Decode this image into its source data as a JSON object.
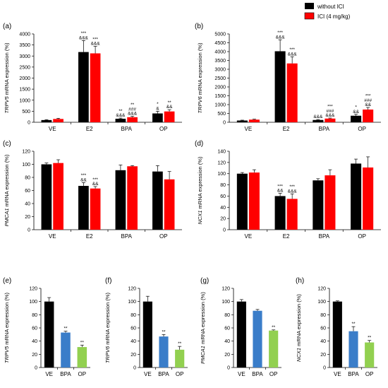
{
  "legend": {
    "items": [
      {
        "label": "without ICI",
        "color": "#000000"
      },
      {
        "label": "ICI (4 mg/kg)",
        "color": "#ff0000"
      }
    ]
  },
  "chart_data": [
    {
      "id": "a",
      "panel_label": "(a)",
      "type": "bar",
      "ylabel_gene": "TRPV5",
      "ylabel_rest": " mRNA expression (%)",
      "ylim": [
        0,
        4000
      ],
      "yticks": [
        0,
        500,
        1000,
        1500,
        2000,
        2500,
        3000,
        3500,
        4000
      ],
      "categories": [
        "VE",
        "E2",
        "BPA",
        "OP"
      ],
      "series": [
        {
          "key": "without",
          "color": "#000000",
          "values": [
            100,
            3180,
            160,
            400
          ],
          "errors": [
            20,
            520,
            30,
            100
          ]
        },
        {
          "key": "ici",
          "color": "#ff0000",
          "values": [
            150,
            3120,
            230,
            490
          ],
          "errors": [
            30,
            320,
            40,
            80
          ]
        }
      ],
      "annotations": [
        {
          "cat": 1,
          "series": 0,
          "lines": [
            "***",
            "&&&"
          ]
        },
        {
          "cat": 1,
          "series": 1,
          "lines": [
            "***",
            "&&&"
          ]
        },
        {
          "cat": 2,
          "series": 0,
          "lines": [
            "**",
            "&&&"
          ]
        },
        {
          "cat": 2,
          "series": 1,
          "lines": [
            "**",
            "###",
            "&&&"
          ]
        },
        {
          "cat": 3,
          "series": 0,
          "lines": [
            "*",
            "&"
          ]
        },
        {
          "cat": 3,
          "series": 1,
          "lines": [
            "**",
            "&&"
          ]
        }
      ]
    },
    {
      "id": "b",
      "panel_label": "(b)",
      "type": "bar",
      "ylabel_gene": "TRPV6",
      "ylabel_rest": " mRNA expression (%)",
      "ylim": [
        0,
        5000
      ],
      "yticks": [
        0,
        500,
        1000,
        1500,
        2000,
        2500,
        3000,
        3500,
        4000,
        4500,
        5000
      ],
      "categories": [
        "VE",
        "E2",
        "BPA",
        "OP"
      ],
      "series": [
        {
          "key": "without",
          "color": "#000000",
          "values": [
            100,
            4020,
            130,
            370
          ],
          "errors": [
            20,
            650,
            25,
            80
          ]
        },
        {
          "key": "ici",
          "color": "#ff0000",
          "values": [
            150,
            3330,
            210,
            720
          ],
          "errors": [
            25,
            380,
            30,
            120
          ]
        }
      ],
      "annotations": [
        {
          "cat": 1,
          "series": 0,
          "lines": [
            "***",
            "&&&"
          ]
        },
        {
          "cat": 1,
          "series": 1,
          "lines": [
            "***",
            "&&&"
          ]
        },
        {
          "cat": 2,
          "series": 0,
          "lines": [
            "&&&"
          ]
        },
        {
          "cat": 2,
          "series": 1,
          "lines": [
            "***",
            "###",
            "&&&"
          ]
        },
        {
          "cat": 3,
          "series": 0,
          "lines": [
            "*",
            "&&"
          ]
        },
        {
          "cat": 3,
          "series": 1,
          "lines": [
            "***",
            "###",
            "&&"
          ]
        }
      ]
    },
    {
      "id": "c",
      "panel_label": "(c)",
      "type": "bar",
      "ylabel_gene": "PMCA1",
      "ylabel_rest": " mRNA expression (%)",
      "ylim": [
        0,
        120
      ],
      "yticks": [
        0,
        20,
        40,
        60,
        80,
        100,
        120
      ],
      "categories": [
        "VE",
        "E2",
        "BPA",
        "OP"
      ],
      "series": [
        {
          "key": "without",
          "color": "#000000",
          "values": [
            100,
            67,
            91,
            89
          ],
          "errors": [
            2,
            5,
            8,
            9
          ]
        },
        {
          "key": "ici",
          "color": "#ff0000",
          "values": [
            102,
            63,
            97,
            77
          ],
          "errors": [
            5,
            3,
            1,
            12
          ]
        }
      ],
      "annotations": [
        {
          "cat": 1,
          "series": 0,
          "lines": [
            "***",
            "&&"
          ]
        },
        {
          "cat": 1,
          "series": 1,
          "lines": [
            "***",
            "&&"
          ]
        }
      ]
    },
    {
      "id": "d",
      "panel_label": "(d)",
      "type": "bar",
      "ylabel_gene": "NCX1",
      "ylabel_rest": " mRNA expression (%)",
      "ylim": [
        0,
        140
      ],
      "yticks": [
        0,
        20,
        40,
        60,
        80,
        100,
        120,
        140
      ],
      "categories": [
        "VE",
        "E2",
        "BPA",
        "OP"
      ],
      "series": [
        {
          "key": "without",
          "color": "#000000",
          "values": [
            100,
            60,
            88,
            118
          ],
          "errors": [
            2,
            5,
            3,
            8
          ]
        },
        {
          "key": "ici",
          "color": "#ff0000",
          "values": [
            102,
            55,
            97,
            111
          ],
          "errors": [
            5,
            9,
            10,
            19
          ]
        }
      ],
      "annotations": [
        {
          "cat": 1,
          "series": 0,
          "lines": [
            "***",
            "&&"
          ]
        },
        {
          "cat": 1,
          "series": 1,
          "lines": [
            "***",
            "&&&"
          ]
        }
      ]
    },
    {
      "id": "e",
      "panel_label": "(e)",
      "type": "bar",
      "ylabel_gene": "TRPV5",
      "ylabel_rest": " mRNA expression (%)",
      "ylim": [
        0,
        120
      ],
      "yticks": [
        0,
        20,
        40,
        60,
        80,
        100,
        120
      ],
      "categories": [
        "VE",
        "BPA",
        "OP"
      ],
      "series": [
        {
          "key": "single",
          "colors": [
            "#000000",
            "#3a7dc9",
            "#92d050"
          ],
          "values": [
            100,
            53,
            31
          ],
          "errors": [
            6,
            2,
            3
          ]
        }
      ],
      "annotations": [
        {
          "cat": 1,
          "series": 0,
          "lines": [
            "**"
          ]
        },
        {
          "cat": 2,
          "series": 0,
          "lines": [
            "**"
          ]
        }
      ]
    },
    {
      "id": "f",
      "panel_label": "(f)",
      "type": "bar",
      "ylabel_gene": "TRPV6",
      "ylabel_rest": " mRNA expression (%)",
      "ylim": [
        0,
        120
      ],
      "yticks": [
        0,
        20,
        40,
        60,
        80,
        100,
        120
      ],
      "categories": [
        "VE",
        "BPA",
        "OP"
      ],
      "series": [
        {
          "key": "single",
          "colors": [
            "#000000",
            "#3a7dc9",
            "#92d050"
          ],
          "values": [
            100,
            47,
            27
          ],
          "errors": [
            8,
            3,
            5
          ]
        }
      ],
      "annotations": [
        {
          "cat": 1,
          "series": 0,
          "lines": [
            "**"
          ]
        },
        {
          "cat": 2,
          "series": 0,
          "lines": [
            "**"
          ]
        }
      ]
    },
    {
      "id": "g",
      "panel_label": "(g)",
      "type": "bar",
      "ylabel_gene": "PMCA1",
      "ylabel_rest": " mRNA expression (%)",
      "ylim": [
        0,
        120
      ],
      "yticks": [
        0,
        20,
        40,
        60,
        80,
        100,
        120
      ],
      "categories": [
        "VE",
        "BPA",
        "OP"
      ],
      "series": [
        {
          "key": "single",
          "colors": [
            "#000000",
            "#3a7dc9",
            "#92d050"
          ],
          "values": [
            100,
            86,
            56
          ],
          "errors": [
            3,
            2,
            1
          ]
        }
      ],
      "annotations": [
        {
          "cat": 2,
          "series": 0,
          "lines": [
            "**"
          ]
        }
      ]
    },
    {
      "id": "h",
      "panel_label": "(h)",
      "type": "bar",
      "ylabel_gene": "NCX1",
      "ylabel_rest": " mRNA expression (%)",
      "ylim": [
        0,
        120
      ],
      "yticks": [
        0,
        20,
        40,
        60,
        80,
        100,
        120
      ],
      "categories": [
        "VE",
        "BPA",
        "OP"
      ],
      "series": [
        {
          "key": "single",
          "colors": [
            "#000000",
            "#3a7dc9",
            "#92d050"
          ],
          "values": [
            100,
            55,
            38
          ],
          "errors": [
            1,
            7,
            3
          ]
        }
      ],
      "annotations": [
        {
          "cat": 1,
          "series": 0,
          "lines": [
            "**"
          ]
        },
        {
          "cat": 2,
          "series": 0,
          "lines": [
            "**"
          ]
        }
      ]
    }
  ]
}
